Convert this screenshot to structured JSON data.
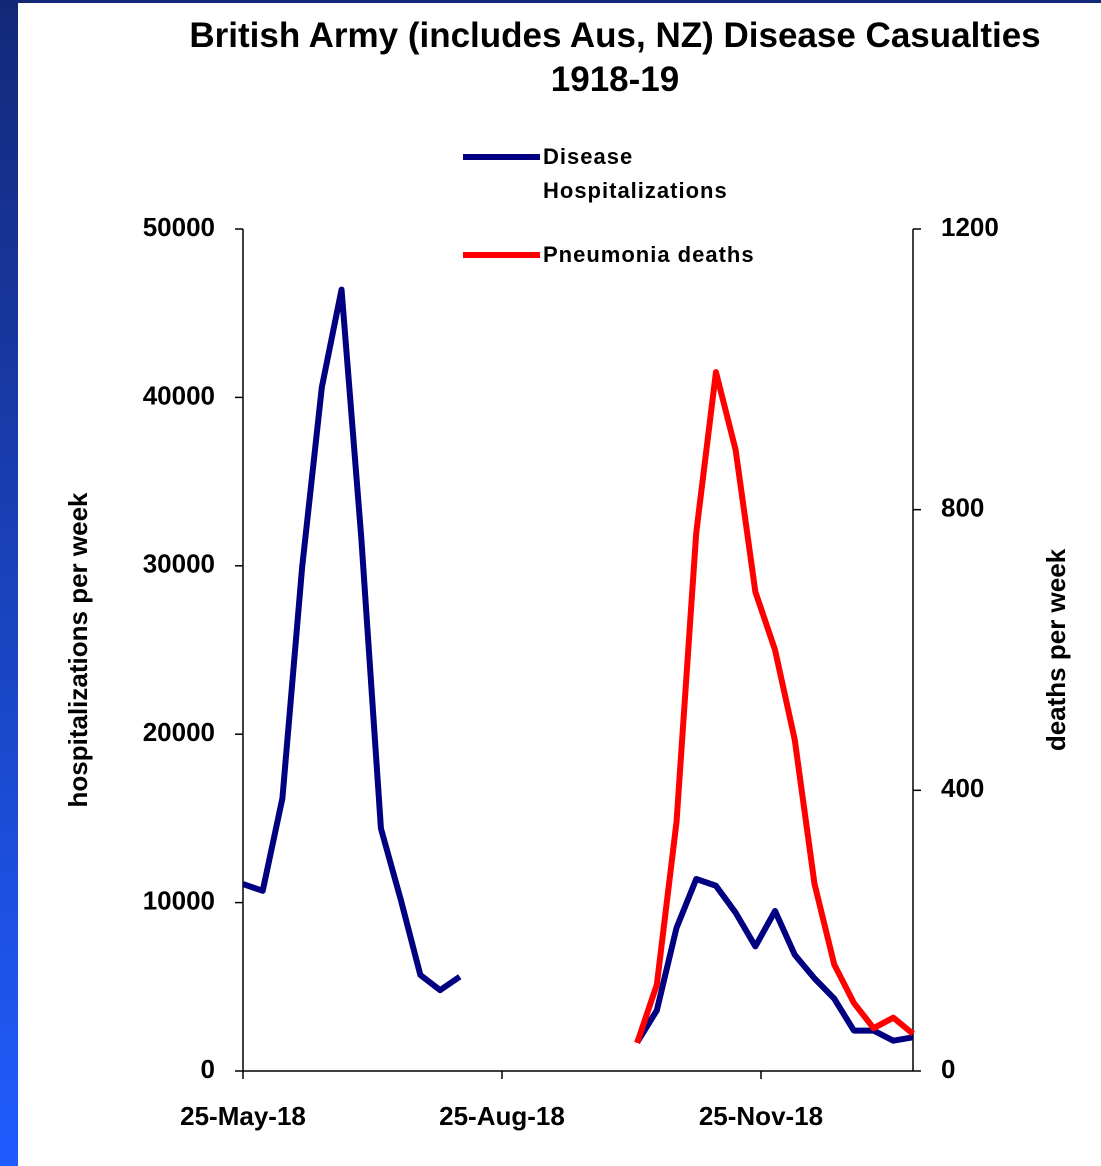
{
  "chart_data": {
    "type": "line",
    "title": "British Army (includes Aus, NZ) Disease Casualties 1918-19",
    "y_label": "hospitalizations per week",
    "y2_label": "deaths per week",
    "x": [
      "2018-05-25",
      "2018-06-01",
      "2018-06-08",
      "2018-06-15",
      "2018-06-22",
      "2018-06-29",
      "2018-07-06",
      "2018-07-13",
      "2018-07-20",
      "2018-07-27",
      "2018-08-03",
      "2018-08-10",
      "2018-08-17",
      "2018-08-24",
      "2018-08-31",
      "2018-09-07",
      "2018-09-14",
      "2018-09-21",
      "2018-09-28",
      "2018-10-05",
      "2018-10-12",
      "2018-10-19",
      "2018-10-26",
      "2018-11-02",
      "2018-11-09",
      "2018-11-16",
      "2018-11-23",
      "2018-11-30",
      "2018-12-07",
      "2018-12-14",
      "2018-12-21",
      "2018-12-28",
      "2019-01-04",
      "2019-01-11",
      "2019-01-18"
    ],
    "xlim": [
      "2018-05-25",
      "2019-01-18"
    ],
    "xticks": [
      {
        "value": "2018-05-25",
        "label": "25-May-18"
      },
      {
        "value": "2018-08-25",
        "label": "25-Aug-18"
      },
      {
        "value": "2018-11-25",
        "label": "25-Nov-18"
      }
    ],
    "ylim": [
      0,
      50000
    ],
    "yticks": [
      0,
      10000,
      20000,
      30000,
      40000,
      50000
    ],
    "y2lim": [
      0,
      1200
    ],
    "y2ticks": [
      0,
      400,
      800,
      1200
    ],
    "series": [
      {
        "name": "Disease Hospitalizations",
        "color": "#000080",
        "values": [
          11100,
          10700,
          16200,
          29900,
          40600,
          46400,
          31700,
          14400,
          10200,
          5700,
          4800,
          5600,
          null,
          null,
          null,
          null,
          null,
          null,
          null,
          null,
          1700,
          3600,
          8500,
          11400,
          11000,
          9400,
          7400,
          9500,
          6900,
          5500,
          4300,
          2400,
          2400,
          1800,
          2000
        ]
      },
      {
        "name": "Pneumonia deaths",
        "color": "#ff0000",
        "axis": "y2",
        "values": [
          null,
          null,
          null,
          null,
          null,
          null,
          null,
          null,
          null,
          null,
          null,
          null,
          null,
          null,
          null,
          null,
          null,
          null,
          null,
          null,
          40,
          123,
          355,
          767,
          996,
          885,
          683,
          600,
          472,
          267,
          152,
          97,
          61,
          76,
          53
        ]
      }
    ]
  }
}
